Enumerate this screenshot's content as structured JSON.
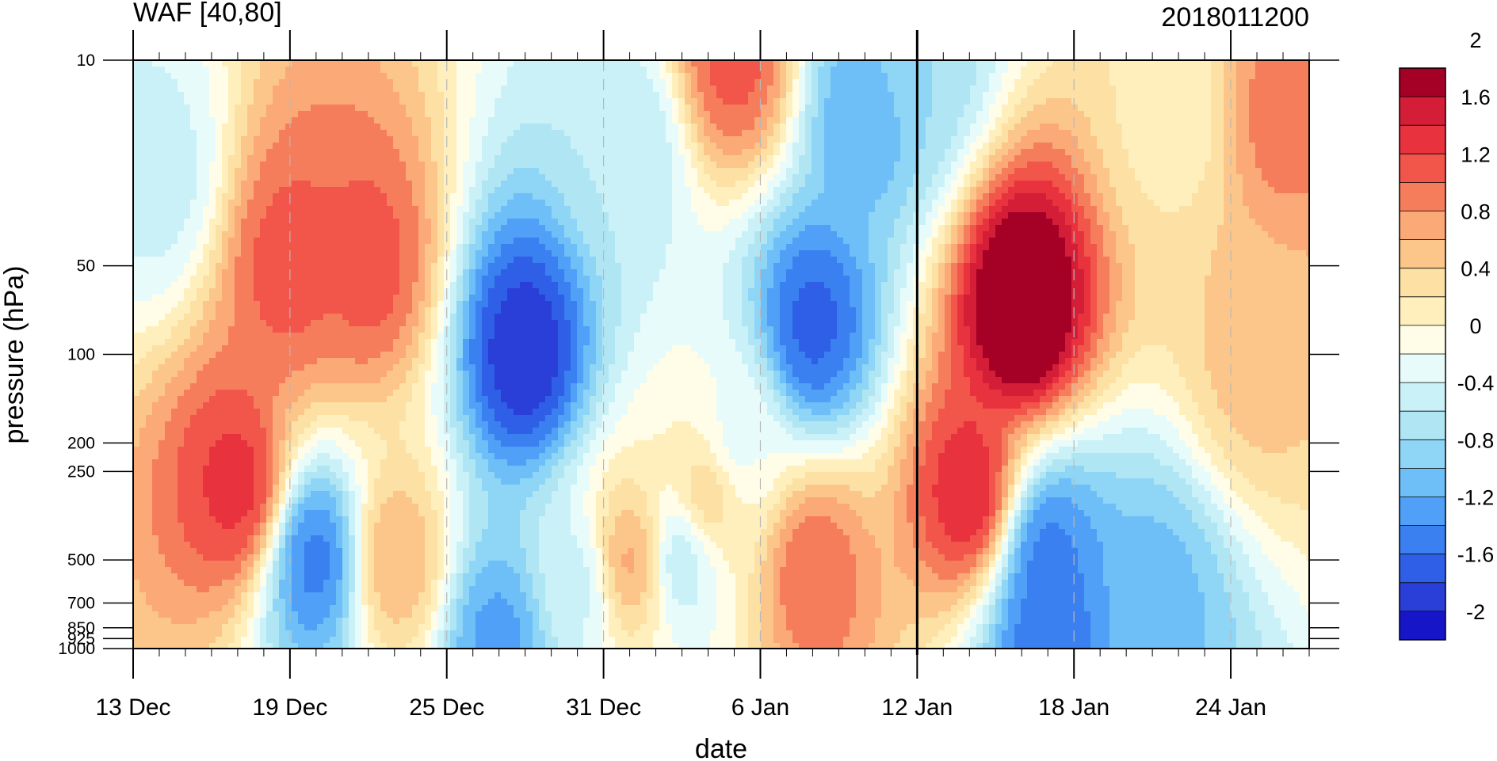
{
  "chart_data": {
    "type": "contour",
    "title": "WAF [40,80]",
    "subtitle": "2018011200",
    "xlabel": "date",
    "ylabel": "pressure (hPa)",
    "y_scale": "log",
    "y_reversed": true,
    "ylim": [
      1000,
      10
    ],
    "x_start": "2017-12-13",
    "x_end": "2018-01-27",
    "x_ticks": [
      {
        "date": "2017-12-13",
        "label": "13 Dec"
      },
      {
        "date": "2017-12-19",
        "label": "19 Dec"
      },
      {
        "date": "2017-12-25",
        "label": "25 Dec"
      },
      {
        "date": "2017-12-31",
        "label": "31 Dec"
      },
      {
        "date": "2018-01-06",
        "label": "6 Jan"
      },
      {
        "date": "2018-01-12",
        "label": "12 Jan"
      },
      {
        "date": "2018-01-18",
        "label": "18 Jan"
      },
      {
        "date": "2018-01-24",
        "label": "24 Jan"
      }
    ],
    "y_ticks": [
      {
        "value": 10,
        "label": "10"
      },
      {
        "value": 50,
        "label": "50"
      },
      {
        "value": 100,
        "label": "100"
      },
      {
        "value": 200,
        "label": "200"
      },
      {
        "value": 250,
        "label": "250"
      },
      {
        "value": 500,
        "label": "500"
      },
      {
        "value": 700,
        "label": "700"
      },
      {
        "value": 850,
        "label": "850"
      },
      {
        "value": 925,
        "label": "925"
      },
      {
        "value": 1000,
        "label": "1000"
      }
    ],
    "vertical_line_date": "2018-01-12",
    "colorbar": {
      "levels": [
        -2.2,
        -2.0,
        -1.8,
        -1.6,
        -1.4,
        -1.2,
        -1.0,
        -0.8,
        -0.6,
        -0.4,
        -0.2,
        0.0,
        0.2,
        0.4,
        0.6,
        0.8,
        1.0,
        1.2,
        1.4,
        1.6,
        1.8,
        2.0,
        2.2
      ],
      "colors": [
        "#1616c8",
        "#2a3ed8",
        "#2f5fe6",
        "#3a80f0",
        "#4fa0f6",
        "#6ebef8",
        "#8fd5f6",
        "#b0e6f4",
        "#c9f1f7",
        "#e8fbfb",
        "#fffde8",
        "#ffefbd",
        "#fde0a4",
        "#fcc68a",
        "#fba976",
        "#f67d5c",
        "#f2554a",
        "#e8323e",
        "#d41e38",
        "#a50026"
      ],
      "labels": [
        {
          "value": 2.0,
          "label": "2"
        },
        {
          "value": 1.6,
          "label": "1.6"
        },
        {
          "value": 1.2,
          "label": "1.2"
        },
        {
          "value": 0.8,
          "label": "0.8"
        },
        {
          "value": 0.4,
          "label": "0.4"
        },
        {
          "value": 0.0,
          "label": "0"
        },
        {
          "value": -0.4,
          "label": "-0.4"
        },
        {
          "value": -0.8,
          "label": "-0.8"
        },
        {
          "value": -1.2,
          "label": "-1.2"
        },
        {
          "value": -1.6,
          "label": "-1.6"
        },
        {
          "value": -2.0,
          "label": "-2"
        }
      ]
    },
    "features": [
      {
        "date": "2018-01-16",
        "p": 70,
        "value": 2.1
      },
      {
        "date": "2018-01-14",
        "p": 300,
        "value": 1.4
      },
      {
        "date": "2017-12-17",
        "p": 280,
        "value": 1.3
      },
      {
        "date": "2017-12-19",
        "p": 50,
        "value": 1.1
      },
      {
        "date": "2017-12-22",
        "p": 50,
        "value": 1.1
      },
      {
        "date": "2018-01-05",
        "p": 10,
        "value": 1.1
      },
      {
        "date": "2018-01-08",
        "p": 550,
        "value": 1.0
      },
      {
        "date": "2017-12-23",
        "p": 500,
        "value": 0.6
      },
      {
        "date": "2017-12-28",
        "p": 100,
        "value": -2.0
      },
      {
        "date": "2018-01-08",
        "p": 80,
        "value": -1.7
      },
      {
        "date": "2017-12-20",
        "p": 500,
        "value": -1.5
      },
      {
        "date": "2018-01-17",
        "p": 500,
        "value": -1.5
      },
      {
        "date": "2018-01-17",
        "p": 920,
        "value": -1.6
      },
      {
        "date": "2018-01-10",
        "p": 15,
        "value": -1.2
      },
      {
        "date": "2018-01-21",
        "p": 700,
        "value": -1.1
      },
      {
        "date": "2017-12-27",
        "p": 950,
        "value": -1.3
      },
      {
        "date": "2018-01-25",
        "p": 100,
        "value": 0.5
      },
      {
        "date": "2018-01-22",
        "p": 15,
        "value": 0.1
      },
      {
        "date": "2018-01-26",
        "p": 15,
        "value": 0.9
      },
      {
        "date": "2017-12-14",
        "p": 25,
        "value": -0.5
      },
      {
        "date": "2018-01-01",
        "p": 20,
        "value": -0.6
      },
      {
        "date": "2017-12-30",
        "p": 600,
        "value": -0.5
      },
      {
        "date": "2018-01-03",
        "p": 500,
        "value": -0.6
      },
      {
        "date": "2018-01-01",
        "p": 500,
        "value": 0.7
      },
      {
        "date": "2018-01-04",
        "p": 300,
        "value": 0.4
      },
      {
        "date": "2018-01-05",
        "p": 200,
        "value": -0.3
      },
      {
        "date": "2018-01-12",
        "p": 10,
        "value": -0.8
      }
    ]
  }
}
